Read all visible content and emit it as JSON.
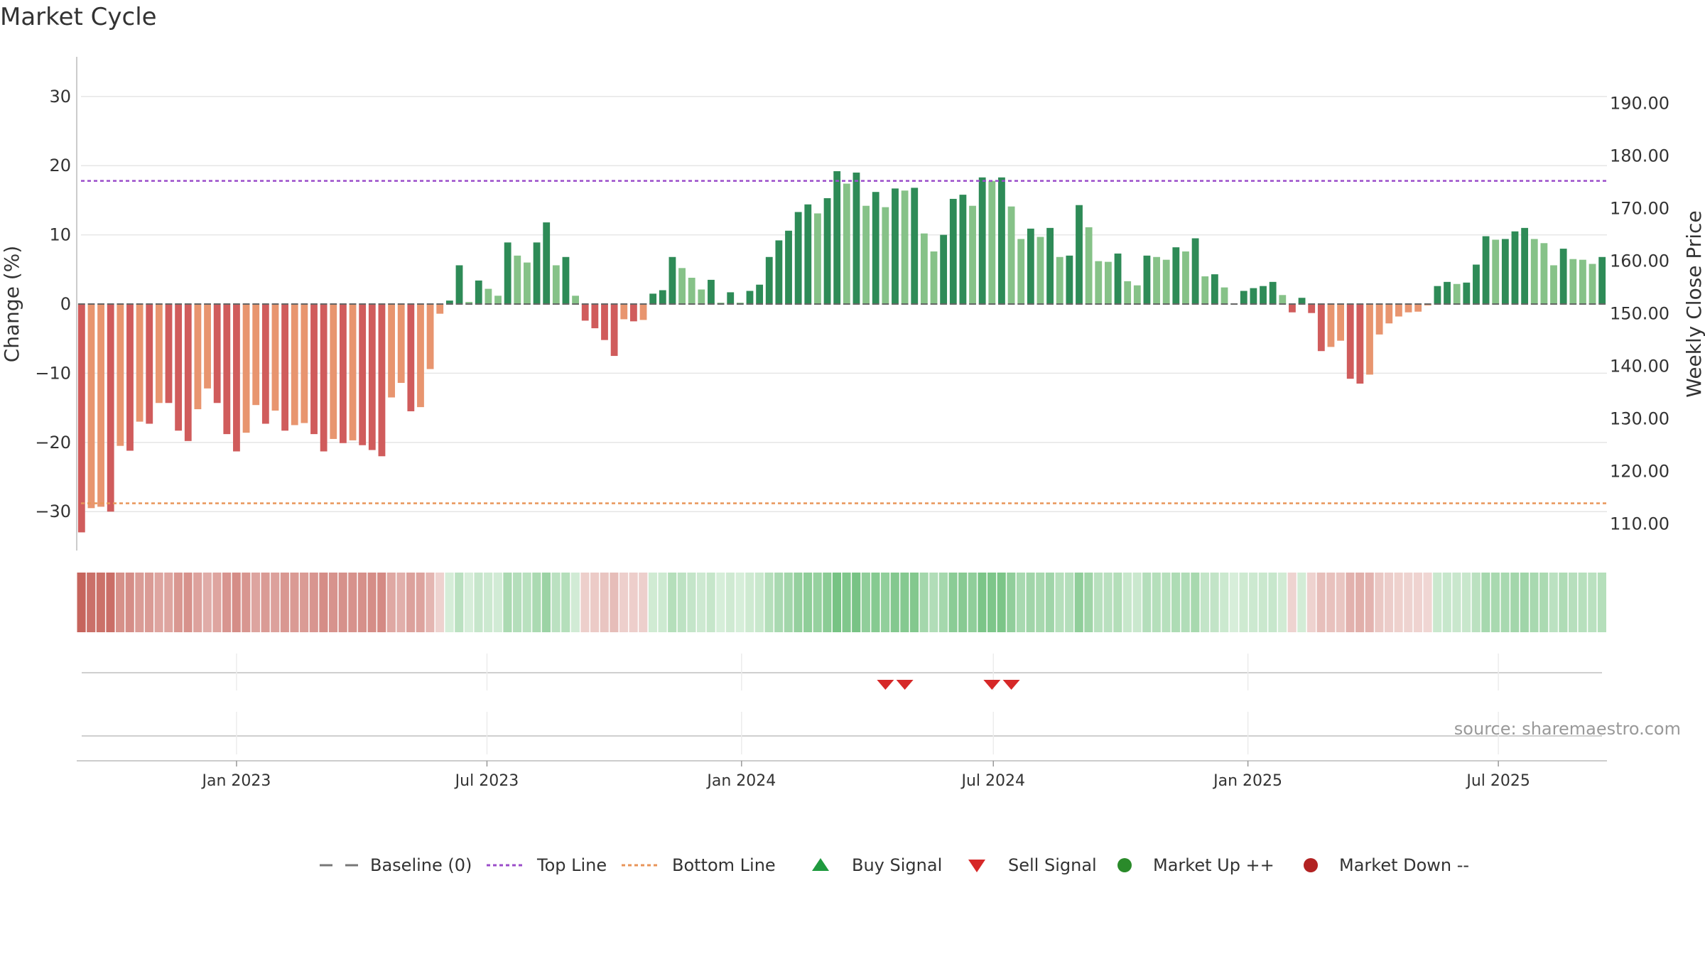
{
  "title": "Market Cycle",
  "source": "source: sharemaestro.com",
  "chart_data": {
    "type": "bar",
    "title": "Market Cycle",
    "ylabel_left": "Change (%)",
    "ylabel_right": "Weekly Close Price",
    "ylim": [
      -35,
      36
    ],
    "yticks_left": [
      30,
      20,
      10,
      0,
      -10,
      -20,
      -30
    ],
    "ytick_labels_left": [
      "30",
      "20",
      "10",
      "0",
      "−10",
      "−20",
      "−30"
    ],
    "right_axis_ticks": [
      "190.00",
      "180.00",
      "170.00",
      "160.00",
      "150.00",
      "140.00",
      "130.00",
      "120.00",
      "110.00"
    ],
    "right_axis_ticks_at_left_scale": [
      29.0,
      21.4,
      13.8,
      6.2,
      -1.4,
      -9.0,
      -16.6,
      -24.2,
      -31.8
    ],
    "top_line": 17.8,
    "bottom_line": -28.8,
    "baseline": 0,
    "start_date": "2022-09-11",
    "week_step_days": 7,
    "x_tick_labels": [
      "Jan 2023",
      "Jul 2023",
      "Jan 2024",
      "Jul 2024",
      "Jan 2025",
      "Jul 2025"
    ],
    "x_tick_dates": [
      "2023-01-01",
      "2023-07-01",
      "2024-01-01",
      "2024-07-01",
      "2025-01-01",
      "2025-07-01"
    ],
    "values": [
      -33,
      -29.5,
      -29.3,
      -30,
      -20.5,
      -21.2,
      -17,
      -17.3,
      -14.3,
      -14.3,
      -18.3,
      -19.8,
      -15.2,
      -12.2,
      -14.3,
      -18.8,
      -21.3,
      -18.6,
      -14.6,
      -17.3,
      -15.4,
      -18.3,
      -17.5,
      -17.2,
      -18.8,
      -21.3,
      -19.5,
      -20.1,
      -19.7,
      -20.4,
      -21.1,
      -22,
      -13.5,
      -11.4,
      -15.5,
      -14.9,
      -9.4,
      -1.4,
      0.5,
      5.6,
      0.3,
      3.4,
      2.2,
      1.2,
      8.9,
      7,
      6,
      8.9,
      11.8,
      5.6,
      6.8,
      1.2,
      -2.4,
      -3.5,
      -5.2,
      -7.5,
      -2.2,
      -2.5,
      -2.3,
      1.5,
      2,
      6.8,
      5.2,
      3.8,
      2.1,
      3.5,
      0.2,
      1.7,
      0.2,
      1.9,
      2.8,
      6.8,
      9.2,
      10.6,
      13.3,
      14.4,
      13.1,
      15.3,
      19.2,
      17.4,
      19,
      14.2,
      16.2,
      14,
      16.7,
      16.4,
      16.8,
      10.2,
      7.6,
      10,
      15.2,
      15.8,
      14.2,
      18.3,
      17.8,
      18.3,
      14.1,
      9.4,
      10.9,
      9.7,
      11,
      6.8,
      7,
      14.3,
      11.1,
      6.2,
      6.1,
      7.3,
      3.3,
      2.7,
      7,
      6.8,
      6.4,
      8.2,
      7.6,
      9.5,
      4,
      4.3,
      2.4,
      0.1,
      1.9,
      2.3,
      2.6,
      3.2,
      1.3,
      -1.2,
      0.9,
      -1.3,
      -6.8,
      -6.2,
      -5.3,
      -10.8,
      -11.5,
      -10.2,
      -4.4,
      -2.8,
      -1.8,
      -1.2,
      -1.1,
      -0.2,
      2.6,
      3.2,
      2.9,
      3.1,
      5.7,
      9.8,
      9.3,
      9.4,
      10.5,
      11,
      9.4,
      8.8,
      5.6,
      8,
      6.5,
      6.4,
      5.8,
      6.8
    ],
    "signals": [
      {
        "type": "sell",
        "date": "2024-04-14"
      },
      {
        "type": "sell",
        "date": "2024-04-28"
      },
      {
        "type": "sell",
        "date": "2024-06-30"
      },
      {
        "type": "sell",
        "date": "2024-07-14"
      }
    ],
    "legend": [
      {
        "label": "Baseline (0)",
        "marker": "dash-line",
        "color": "#777777"
      },
      {
        "label": "Top Line",
        "marker": "dotted-line",
        "color": "#9b4dca"
      },
      {
        "label": "Bottom Line",
        "marker": "dotted-line",
        "color": "#e8955a"
      },
      {
        "label": "Buy Signal",
        "marker": "triangle-up",
        "color": "#1f9a3f"
      },
      {
        "label": "Sell Signal",
        "marker": "triangle-down",
        "color": "#d62828"
      },
      {
        "label": "Market Up ++",
        "marker": "circle",
        "color": "#2a8a2a"
      },
      {
        "label": "Market Down --",
        "marker": "circle",
        "color": "#b22222"
      }
    ],
    "colors": {
      "strong_up": "#2e8b57",
      "mild_up": "#86c288",
      "strong_down": "#d05c5c",
      "mild_down": "#e8956f",
      "top_line": "#9b4dca",
      "bottom_line": "#e8955a",
      "grid": "#e6e6e6"
    }
  }
}
